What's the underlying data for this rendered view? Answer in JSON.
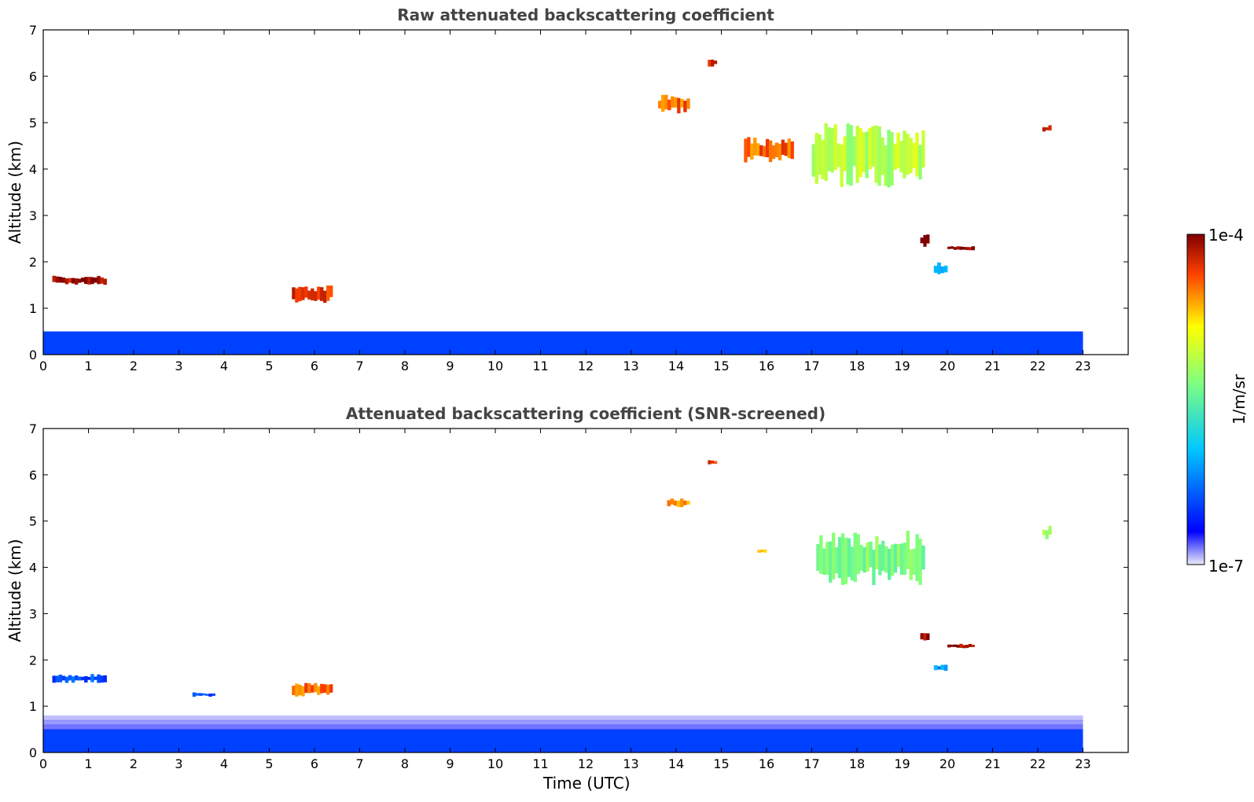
{
  "chart_data": [
    {
      "type": "heatmap",
      "title": "Raw attenuated backscattering coefficient",
      "xlabel": "",
      "ylabel": "Altitude (km)",
      "xlim": [
        0,
        24
      ],
      "ylim": [
        0,
        7
      ],
      "data_x_extent": [
        0,
        23
      ],
      "x_ticks": [
        "0",
        "1",
        "2",
        "3",
        "4",
        "5",
        "6",
        "7",
        "8",
        "9",
        "10",
        "11",
        "12",
        "13",
        "14",
        "15",
        "16",
        "17",
        "18",
        "19",
        "20",
        "21",
        "22",
        "23"
      ],
      "y_ticks": [
        "0",
        "1",
        "2",
        "3",
        "4",
        "5",
        "6",
        "7"
      ],
      "features": [
        {
          "kind": "aerosol-layer",
          "x": [
            0,
            23
          ],
          "y": [
            0,
            0.5
          ],
          "level": 0.18
        },
        {
          "kind": "cloud",
          "x": [
            0.2,
            1.4
          ],
          "y": [
            1.5,
            1.7
          ],
          "level": 0.97
        },
        {
          "kind": "cloud",
          "x": [
            5.5,
            6.4
          ],
          "y": [
            1.1,
            1.5
          ],
          "level": 0.9
        },
        {
          "kind": "cloud",
          "x": [
            14.7,
            14.9
          ],
          "y": [
            6.2,
            6.4
          ],
          "level": 0.9
        },
        {
          "kind": "cloud",
          "x": [
            13.6,
            14.3
          ],
          "y": [
            5.2,
            5.6
          ],
          "level": 0.85
        },
        {
          "kind": "cloud",
          "x": [
            15.5,
            16.6
          ],
          "y": [
            4.1,
            4.7
          ],
          "level": 0.85
        },
        {
          "kind": "cirrus",
          "x": [
            17.0,
            19.5
          ],
          "y": [
            3.6,
            5.0
          ],
          "level": 0.62
        },
        {
          "kind": "cloud",
          "x": [
            19.4,
            19.6
          ],
          "y": [
            2.3,
            2.6
          ],
          "level": 0.97
        },
        {
          "kind": "cloud",
          "x": [
            20.0,
            20.6
          ],
          "y": [
            2.25,
            2.35
          ],
          "level": 0.99
        },
        {
          "kind": "cloud",
          "x": [
            22.1,
            22.3
          ],
          "y": [
            4.8,
            4.95
          ],
          "level": 0.98
        },
        {
          "kind": "aerosol",
          "x": [
            19.7,
            20.0
          ],
          "y": [
            1.7,
            2.0
          ],
          "level": 0.3
        }
      ]
    },
    {
      "type": "heatmap",
      "title": "Attenuated backscattering coefficient (SNR-screened)",
      "xlabel": "Time (UTC)",
      "ylabel": "Altitude (km)",
      "xlim": [
        0,
        24
      ],
      "ylim": [
        0,
        7
      ],
      "data_x_extent": [
        0,
        23
      ],
      "x_ticks": [
        "0",
        "1",
        "2",
        "3",
        "4",
        "5",
        "6",
        "7",
        "8",
        "9",
        "10",
        "11",
        "12",
        "13",
        "14",
        "15",
        "16",
        "17",
        "18",
        "19",
        "20",
        "21",
        "22",
        "23"
      ],
      "y_ticks": [
        "0",
        "1",
        "2",
        "3",
        "4",
        "5",
        "6",
        "7"
      ],
      "features": [
        {
          "kind": "aerosol-layer",
          "x": [
            0,
            23
          ],
          "y": [
            0,
            0.8
          ],
          "level": 0.18
        },
        {
          "kind": "cloud",
          "x": [
            0.2,
            1.4
          ],
          "y": [
            1.5,
            1.7
          ],
          "level": 0.2
        },
        {
          "kind": "cloud",
          "x": [
            3.3,
            3.8
          ],
          "y": [
            1.2,
            1.3
          ],
          "level": 0.2
        },
        {
          "kind": "cloud",
          "x": [
            5.5,
            6.4
          ],
          "y": [
            1.2,
            1.5
          ],
          "level": 0.85
        },
        {
          "kind": "cloud",
          "x": [
            14.7,
            14.9
          ],
          "y": [
            6.2,
            6.35
          ],
          "level": 0.88
        },
        {
          "kind": "cloud",
          "x": [
            13.8,
            14.3
          ],
          "y": [
            5.3,
            5.5
          ],
          "level": 0.8
        },
        {
          "kind": "cloud",
          "x": [
            15.8,
            16.0
          ],
          "y": [
            4.3,
            4.4
          ],
          "level": 0.78
        },
        {
          "kind": "cirrus",
          "x": [
            17.1,
            19.5
          ],
          "y": [
            3.6,
            4.8
          ],
          "level": 0.55
        },
        {
          "kind": "cloud",
          "x": [
            19.4,
            19.6
          ],
          "y": [
            2.4,
            2.6
          ],
          "level": 0.99
        },
        {
          "kind": "cloud",
          "x": [
            20.0,
            20.6
          ],
          "y": [
            2.25,
            2.35
          ],
          "level": 0.99
        },
        {
          "kind": "cloud",
          "x": [
            22.1,
            22.3
          ],
          "y": [
            4.6,
            4.9
          ],
          "level": 0.6
        },
        {
          "kind": "cloud",
          "x": [
            19.7,
            20.0
          ],
          "y": [
            1.75,
            1.9
          ],
          "level": 0.3
        }
      ]
    }
  ],
  "colorbar": {
    "label": "1/m/sr",
    "max_label": "1e-4",
    "min_label": "1e-7",
    "colormap": "jet",
    "stops": [
      "#ececf8",
      "#0000ff",
      "#00c8ff",
      "#80ff80",
      "#ffff00",
      "#ff4000",
      "#7f0000"
    ]
  }
}
